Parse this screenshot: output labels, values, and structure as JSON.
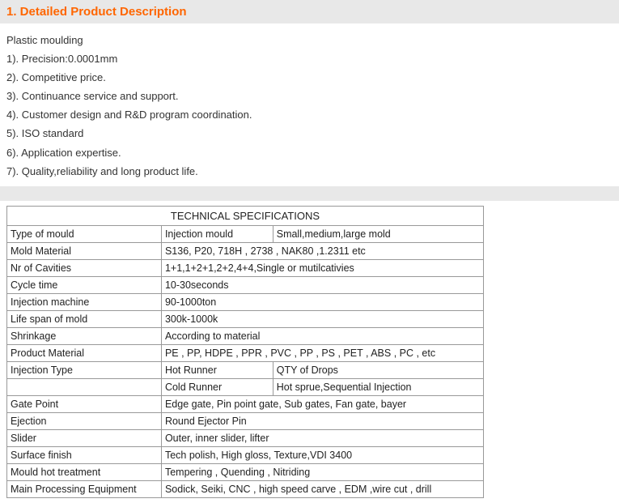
{
  "header": {
    "title": "1. Detailed Product Description"
  },
  "description": {
    "intro": "Plastic moulding",
    "items": [
      "1).  Precision:0.0001mm",
      "2). Competitive price.",
      "3). Continuance service and support.",
      "4). Customer design and R&D program coordination.",
      "5). ISO standard",
      "6). Application expertise.",
      "7). Quality,reliability and long product life."
    ]
  },
  "table": {
    "title": "TECHNICAL SPECIFICATIONS",
    "rows": {
      "r1": {
        "c1": "Type of mould",
        "c2": "Injection mould",
        "c3": "Small,medium,large mold"
      },
      "r2": {
        "c1": "Mold Material",
        "c2": "S136, P20, 718H , 2738 , NAK80 ,1.2311 etc"
      },
      "r3": {
        "c1": "Nr of Cavities",
        "c2": "1+1,1+2+1,2+2,4+4,Single or mutilcativies"
      },
      "r4": {
        "c1": "Cycle time",
        "c2": "10-30seconds"
      },
      "r5": {
        "c1": "Injection machine",
        "c2": "90-1000ton"
      },
      "r6": {
        "c1": "Life span of mold",
        "c2": "300k-1000k"
      },
      "r7": {
        "c1": "Shrinkage",
        "c2": "According to material"
      },
      "r8": {
        "c1": "Product Material",
        "c2": "PE , PP, HDPE , PPR , PVC , PP , PS , PET , ABS , PC , etc"
      },
      "r9": {
        "c1": "Injection Type",
        "c2": "Hot Runner",
        "c3": "QTY of Drops"
      },
      "r10": {
        "c1": "",
        "c2": "Cold Runner",
        "c3": "Hot sprue,Sequential Injection"
      },
      "r11": {
        "c1": "Gate Point",
        "c2": "Edge gate, Pin point gate, Sub gates, Fan gate, bayer"
      },
      "r12": {
        "c1": "Ejection",
        "c2": "Round Ejector Pin"
      },
      "r13": {
        "c1": "Slider",
        "c2": "Outer, inner slider, lifter"
      },
      "r14": {
        "c1": "Surface finish",
        "c2": "Tech polish, High gloss, Texture,VDI 3400"
      },
      "r15": {
        "c1": "Mould hot treatment",
        "c2": "Tempering , Quending , Nitriding"
      },
      "r16": {
        "c1": "Main Processing Equipment",
        "c2": "Sodick, Seiki, CNC , high speed carve , EDM ,wire cut , drill"
      }
    }
  }
}
